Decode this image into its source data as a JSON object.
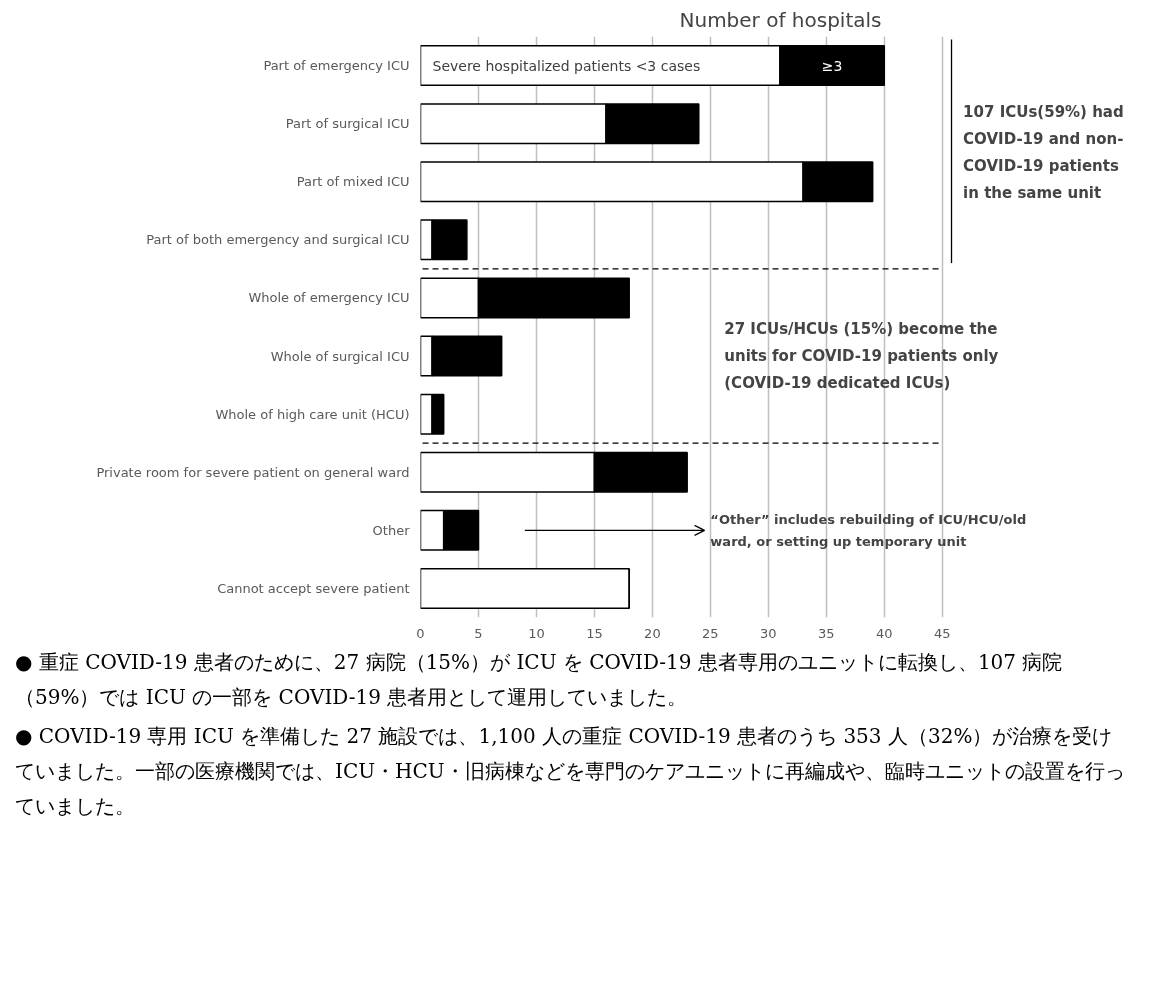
{
  "chart_data": {
    "type": "bar",
    "orientation": "horizontal",
    "stacked": true,
    "title": "Number of hospitals",
    "categories": [
      "Part of emergency ICU",
      "Part of surgical ICU",
      "Part of mixed ICU",
      "Part of both emergency and surgical ICU",
      "Whole of emergency ICU",
      "Whole of surgical ICU",
      "Whole of high care unit (HCU)",
      "Private room for severe patient on general ward",
      "Other",
      "Cannot accept severe patient"
    ],
    "series": [
      {
        "name": "Severe hospitalized patients <3 cases",
        "color": "#ffffff",
        "values": [
          31,
          16,
          33,
          1,
          5,
          1,
          1,
          15,
          2,
          18
        ]
      },
      {
        "name": "≥3",
        "color": "#000000",
        "values": [
          9,
          8,
          6,
          3,
          13,
          6,
          1,
          8,
          3,
          0
        ]
      }
    ],
    "xlim": [
      0,
      45
    ],
    "xticks": [
      0,
      5,
      10,
      15,
      20,
      25,
      30,
      35,
      40,
      45
    ],
    "grid": "x",
    "annotations": [
      "107 ICUs(59%) had\nCOVID-19 and non-\nCOVID-19 patients\nin the same unit",
      "27 ICUs/HCUs (15%) become the\nunits for COVID-19 patients only\n(COVID-19 dedicated ICUs)",
      "“Other” includes rebuilding of ICU/HCU/old\nward, or setting up temporary unit",
      "● 重症 COVID-19 患者のために、27 病院（15%）が ICU を COVID-19 患者専用のユニットに転換し、107 病院（59%）では ICU の一部を COVID-19 患者用として運用していました。",
      "● COVID-19 専用 ICU を準備した 27 施設では、1,100 人の重症 COVID-19 患者のうち 353 人（32%）が治療を受けていました。一部の医療機関では、ICU・HCU・旧病棟などを専門のケアユニットに再編成や、臨時ユニットの設置を行っていました。"
    ]
  }
}
